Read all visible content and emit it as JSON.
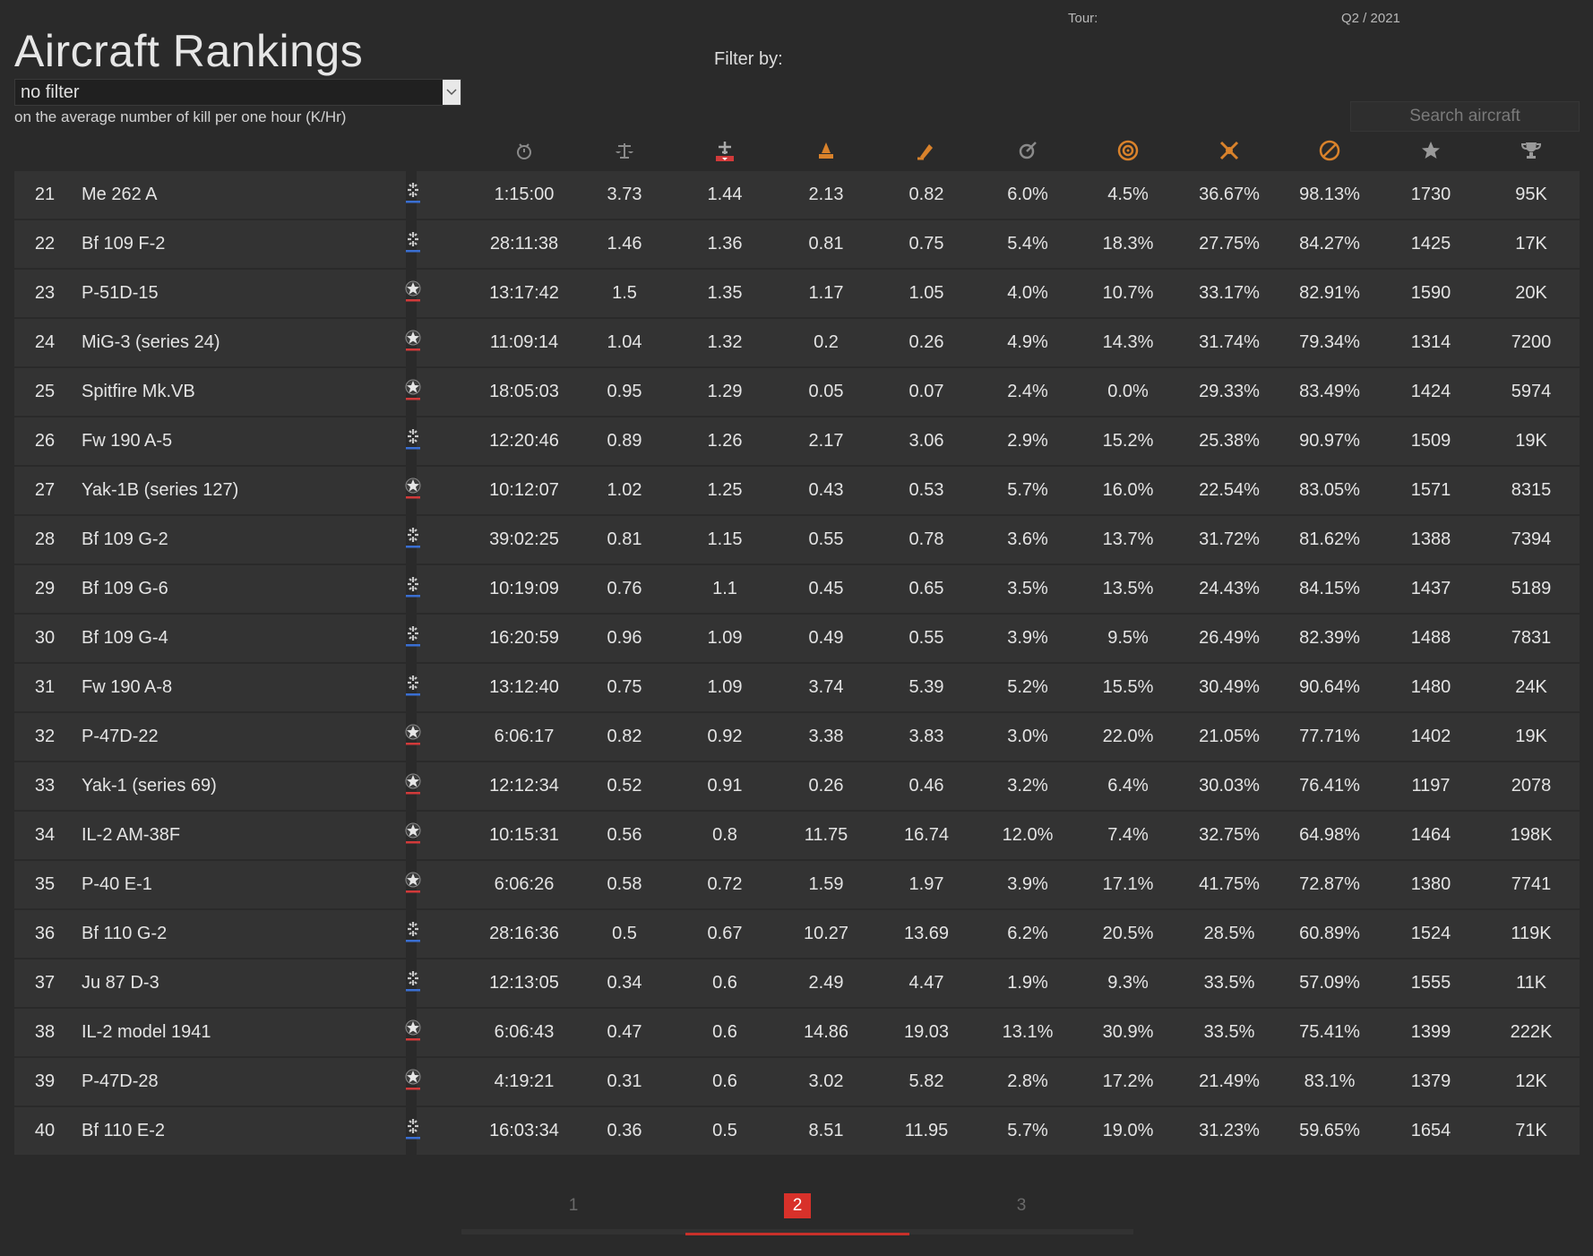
{
  "tour": {
    "label": "Tour:",
    "value": "Q2 / 2021"
  },
  "title": "Aircraft Rankings",
  "filter": {
    "selected": "no filter",
    "caption": "on the average number of kill per one hour (K/Hr)",
    "filter_by_label": "Filter by:"
  },
  "search": {
    "placeholder": "Search aircraft"
  },
  "columns": [
    {
      "icon": "stopwatch-icon"
    },
    {
      "icon": "balance-scale-icon"
    },
    {
      "icon": "aircraft-kill-icon"
    },
    {
      "icon": "ground-target-icon"
    },
    {
      "icon": "ground-target-hour-icon"
    },
    {
      "icon": "accuracy-icon"
    },
    {
      "icon": "target-icon"
    },
    {
      "icon": "bailout-icon"
    },
    {
      "icon": "survival-icon"
    },
    {
      "icon": "star-icon"
    },
    {
      "icon": "trophy-icon"
    }
  ],
  "colors": {
    "allies": "#d23a3a",
    "axis": "#3a6fd2",
    "accent": "#d8312a"
  },
  "rows": [
    {
      "rank": "21",
      "name": "Me 262 A",
      "side": "axis",
      "cells": [
        "1:15:00",
        "3.73",
        "1.44",
        "2.13",
        "0.82",
        "6.0%",
        "4.5%",
        "36.67%",
        "98.13%",
        "1730",
        "95K"
      ]
    },
    {
      "rank": "22",
      "name": "Bf 109 F-2",
      "side": "axis",
      "cells": [
        "28:11:38",
        "1.46",
        "1.36",
        "0.81",
        "0.75",
        "5.4%",
        "18.3%",
        "27.75%",
        "84.27%",
        "1425",
        "17K"
      ]
    },
    {
      "rank": "23",
      "name": "P-51D-15",
      "side": "allies",
      "cells": [
        "13:17:42",
        "1.5",
        "1.35",
        "1.17",
        "1.05",
        "4.0%",
        "10.7%",
        "33.17%",
        "82.91%",
        "1590",
        "20K"
      ]
    },
    {
      "rank": "24",
      "name": "MiG-3 (series 24)",
      "side": "allies",
      "cells": [
        "11:09:14",
        "1.04",
        "1.32",
        "0.2",
        "0.26",
        "4.9%",
        "14.3%",
        "31.74%",
        "79.34%",
        "1314",
        "7200"
      ]
    },
    {
      "rank": "25",
      "name": "Spitfire Mk.VB",
      "side": "allies",
      "cells": [
        "18:05:03",
        "0.95",
        "1.29",
        "0.05",
        "0.07",
        "2.4%",
        "0.0%",
        "29.33%",
        "83.49%",
        "1424",
        "5974"
      ]
    },
    {
      "rank": "26",
      "name": "Fw 190 A-5",
      "side": "axis",
      "cells": [
        "12:20:46",
        "0.89",
        "1.26",
        "2.17",
        "3.06",
        "2.9%",
        "15.2%",
        "25.38%",
        "90.97%",
        "1509",
        "19K"
      ]
    },
    {
      "rank": "27",
      "name": "Yak-1B (series 127)",
      "side": "allies",
      "cells": [
        "10:12:07",
        "1.02",
        "1.25",
        "0.43",
        "0.53",
        "5.7%",
        "16.0%",
        "22.54%",
        "83.05%",
        "1571",
        "8315"
      ]
    },
    {
      "rank": "28",
      "name": "Bf 109 G-2",
      "side": "axis",
      "cells": [
        "39:02:25",
        "0.81",
        "1.15",
        "0.55",
        "0.78",
        "3.6%",
        "13.7%",
        "31.72%",
        "81.62%",
        "1388",
        "7394"
      ]
    },
    {
      "rank": "29",
      "name": "Bf 109 G-6",
      "side": "axis",
      "cells": [
        "10:19:09",
        "0.76",
        "1.1",
        "0.45",
        "0.65",
        "3.5%",
        "13.5%",
        "24.43%",
        "84.15%",
        "1437",
        "5189"
      ]
    },
    {
      "rank": "30",
      "name": "Bf 109 G-4",
      "side": "axis",
      "cells": [
        "16:20:59",
        "0.96",
        "1.09",
        "0.49",
        "0.55",
        "3.9%",
        "9.5%",
        "26.49%",
        "82.39%",
        "1488",
        "7831"
      ]
    },
    {
      "rank": "31",
      "name": "Fw 190 A-8",
      "side": "axis",
      "cells": [
        "13:12:40",
        "0.75",
        "1.09",
        "3.74",
        "5.39",
        "5.2%",
        "15.5%",
        "30.49%",
        "90.64%",
        "1480",
        "24K"
      ]
    },
    {
      "rank": "32",
      "name": "P-47D-22",
      "side": "allies",
      "cells": [
        "6:06:17",
        "0.82",
        "0.92",
        "3.38",
        "3.83",
        "3.0%",
        "22.0%",
        "21.05%",
        "77.71%",
        "1402",
        "19K"
      ]
    },
    {
      "rank": "33",
      "name": "Yak-1 (series 69)",
      "side": "allies",
      "cells": [
        "12:12:34",
        "0.52",
        "0.91",
        "0.26",
        "0.46",
        "3.2%",
        "6.4%",
        "30.03%",
        "76.41%",
        "1197",
        "2078"
      ]
    },
    {
      "rank": "34",
      "name": "IL-2 AM-38F",
      "side": "allies",
      "cells": [
        "10:15:31",
        "0.56",
        "0.8",
        "11.75",
        "16.74",
        "12.0%",
        "7.4%",
        "32.75%",
        "64.98%",
        "1464",
        "198K"
      ]
    },
    {
      "rank": "35",
      "name": "P-40 E-1",
      "side": "allies",
      "cells": [
        "6:06:26",
        "0.58",
        "0.72",
        "1.59",
        "1.97",
        "3.9%",
        "17.1%",
        "41.75%",
        "72.87%",
        "1380",
        "7741"
      ]
    },
    {
      "rank": "36",
      "name": "Bf 110 G-2",
      "side": "axis",
      "cells": [
        "28:16:36",
        "0.5",
        "0.67",
        "10.27",
        "13.69",
        "6.2%",
        "20.5%",
        "28.5%",
        "60.89%",
        "1524",
        "119K"
      ]
    },
    {
      "rank": "37",
      "name": "Ju 87 D-3",
      "side": "axis",
      "cells": [
        "12:13:05",
        "0.34",
        "0.6",
        "2.49",
        "4.47",
        "1.9%",
        "9.3%",
        "33.5%",
        "57.09%",
        "1555",
        "11K"
      ]
    },
    {
      "rank": "38",
      "name": "IL-2 model 1941",
      "side": "allies",
      "cells": [
        "6:06:43",
        "0.47",
        "0.6",
        "14.86",
        "19.03",
        "13.1%",
        "30.9%",
        "33.5%",
        "75.41%",
        "1399",
        "222K"
      ]
    },
    {
      "rank": "39",
      "name": "P-47D-28",
      "side": "allies",
      "cells": [
        "4:19:21",
        "0.31",
        "0.6",
        "3.02",
        "5.82",
        "2.8%",
        "17.2%",
        "21.49%",
        "83.1%",
        "1379",
        "12K"
      ]
    },
    {
      "rank": "40",
      "name": "Bf 110 E-2",
      "side": "axis",
      "cells": [
        "16:03:34",
        "0.36",
        "0.5",
        "8.51",
        "11.95",
        "5.7%",
        "19.0%",
        "31.23%",
        "59.65%",
        "1654",
        "71K"
      ]
    }
  ],
  "pagination": {
    "pages": [
      "1",
      "2",
      "3"
    ],
    "current": "2"
  }
}
